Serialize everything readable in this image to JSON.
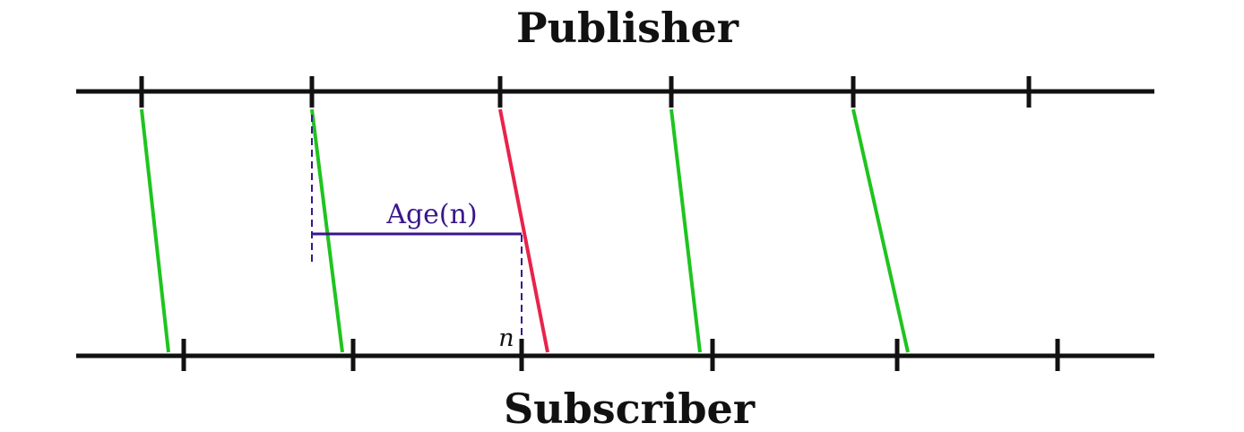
{
  "labels": {
    "publisher": "Publisher",
    "subscriber": "Subscriber",
    "age": "Age(n)",
    "n": "n"
  },
  "colors": {
    "timeline": "#111111",
    "on_time_message": "#1fc41f",
    "late_message": "#e8234a",
    "age_annotation": "#3a168c"
  },
  "messages": [
    {
      "status": "on-time"
    },
    {
      "status": "on-time"
    },
    {
      "status": "late"
    },
    {
      "status": "on-time"
    },
    {
      "status": "on-time"
    }
  ]
}
